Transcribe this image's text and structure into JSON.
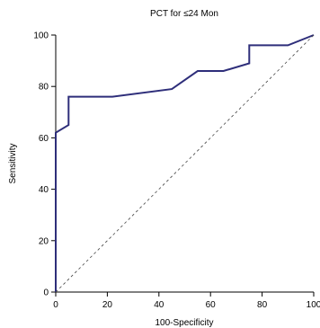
{
  "chart_data": {
    "type": "line",
    "title": "PCT for ≤24 Mon",
    "xlabel": "100-Specificity",
    "ylabel": "Sensitivity",
    "xlim": [
      0,
      100
    ],
    "ylim": [
      0,
      100
    ],
    "xticks": [
      "0",
      "20",
      "40",
      "60",
      "80",
      "100"
    ],
    "yticks": [
      "0",
      "20",
      "40",
      "60",
      "80",
      "100"
    ],
    "grid": false,
    "series": [
      {
        "color": "#2e2e7a",
        "style": "solid",
        "x": [
          0,
          0,
          0,
          0,
          5,
          5,
          22,
          45,
          55,
          65,
          75,
          75,
          90,
          100
        ],
        "y": [
          0,
          50,
          58,
          62,
          65,
          76,
          76,
          79,
          86,
          86,
          89,
          96,
          96,
          100
        ]
      },
      {
        "color": "#444444",
        "style": "dashed",
        "x": [
          0,
          100
        ],
        "y": [
          0,
          100
        ]
      }
    ]
  }
}
